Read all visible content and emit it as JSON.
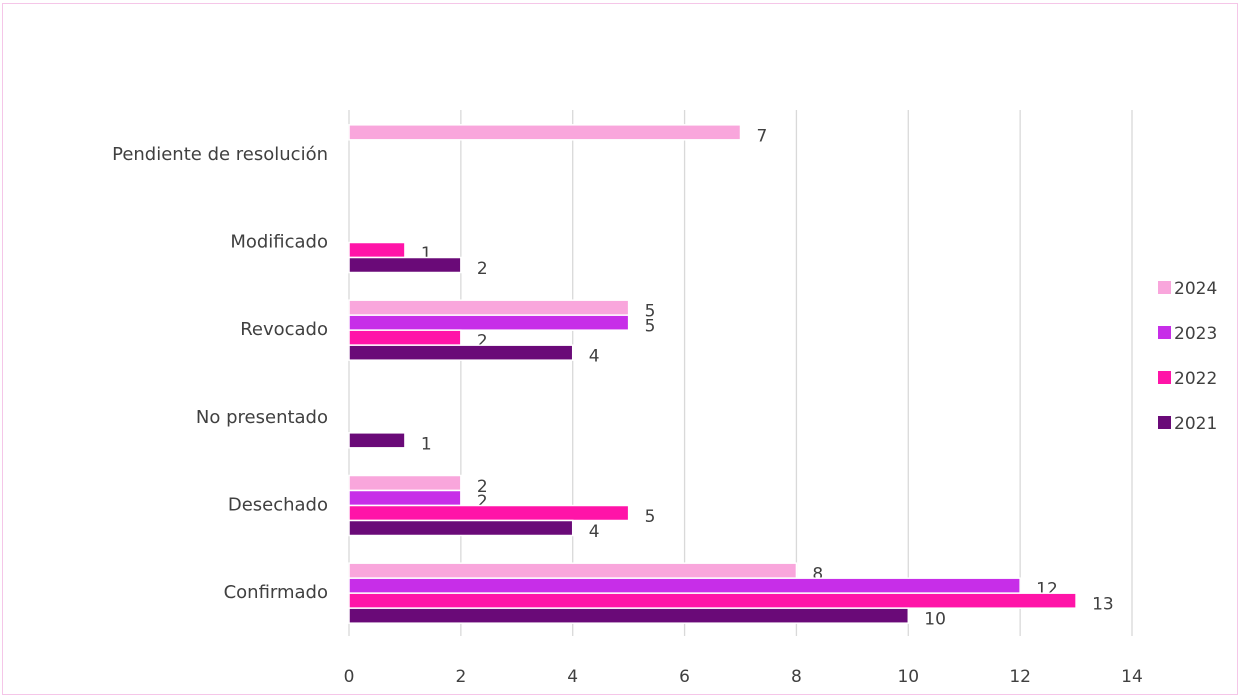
{
  "chart_data": {
    "type": "bar",
    "orientation": "horizontal",
    "categories": [
      "Pendiente de resolución",
      "Modificado",
      "Revocado",
      "No presentado",
      "Desechado",
      "Confirmado"
    ],
    "series": [
      {
        "name": "2024",
        "color": "#f9a6dc",
        "values": [
          7,
          null,
          5,
          null,
          2,
          8
        ]
      },
      {
        "name": "2023",
        "color": "#c72ee8",
        "values": [
          null,
          null,
          5,
          null,
          2,
          12
        ]
      },
      {
        "name": "2022",
        "color": "#ff14a8",
        "values": [
          null,
          1,
          2,
          null,
          5,
          13
        ]
      },
      {
        "name": "2021",
        "color": "#6a0a78",
        "values": [
          null,
          2,
          4,
          1,
          4,
          10
        ]
      }
    ],
    "xlim": [
      0,
      14
    ],
    "xticks": [
      0,
      2,
      4,
      6,
      8,
      10,
      12,
      14
    ],
    "grid": true,
    "legend_position": "right",
    "title": "",
    "xlabel": "",
    "ylabel": ""
  }
}
